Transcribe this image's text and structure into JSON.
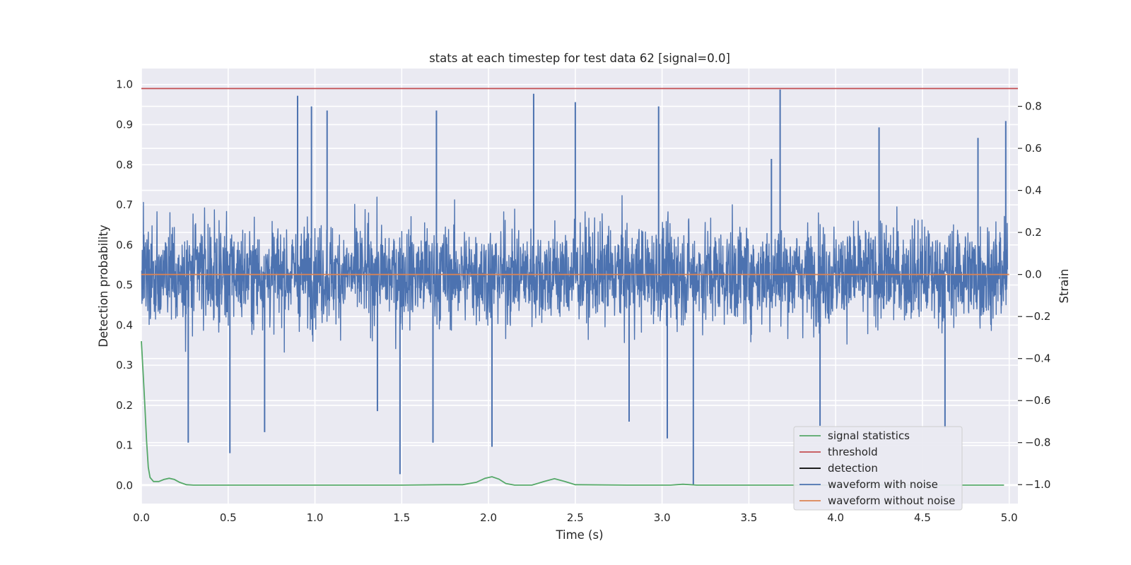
{
  "chart_data": {
    "type": "line",
    "title": "stats at each timestep for test data 62 [signal=0.0]",
    "xlabel": "Time (s)",
    "ylabel_left": "Detection probability",
    "ylabel_right": "Strain",
    "xlim": [
      0.0,
      5.05
    ],
    "ylim_left": [
      -0.045,
      1.04
    ],
    "ylim_right": [
      -1.09,
      0.98
    ],
    "x_ticks": [
      "0.0",
      "0.5",
      "1.0",
      "1.5",
      "2.0",
      "2.5",
      "3.0",
      "3.5",
      "4.0",
      "4.5",
      "5.0"
    ],
    "x_tick_values": [
      0.0,
      0.5,
      1.0,
      1.5,
      2.0,
      2.5,
      3.0,
      3.5,
      4.0,
      4.5,
      5.0
    ],
    "y_left_ticks": [
      "0.0",
      "0.1",
      "0.2",
      "0.3",
      "0.4",
      "0.5",
      "0.6",
      "0.7",
      "0.8",
      "0.9",
      "1.0"
    ],
    "y_left_tick_values": [
      0.0,
      0.1,
      0.2,
      0.3,
      0.4,
      0.5,
      0.6,
      0.7,
      0.8,
      0.9,
      1.0
    ],
    "y_right_ticks": [
      "−1.0",
      "−0.8",
      "−0.6",
      "−0.4",
      "−0.2",
      "0.0",
      "0.2",
      "0.4",
      "0.6",
      "0.8"
    ],
    "y_right_tick_values": [
      -1.0,
      -0.8,
      -0.6,
      -0.4,
      -0.2,
      0.0,
      0.2,
      0.4,
      0.6,
      0.8
    ],
    "grid": true,
    "legend_position": "lower-right",
    "series": [
      {
        "name": "signal statistics",
        "axis": "left",
        "color": "#55a868",
        "x": [
          0.0,
          0.01,
          0.02,
          0.03,
          0.04,
          0.05,
          0.07,
          0.1,
          0.13,
          0.16,
          0.19,
          0.22,
          0.26,
          0.3,
          0.5,
          1.0,
          1.5,
          1.75,
          1.85,
          1.93,
          1.98,
          2.02,
          2.06,
          2.1,
          2.15,
          2.25,
          2.32,
          2.38,
          2.44,
          2.5,
          2.8,
          3.05,
          3.12,
          3.2,
          3.5,
          4.0,
          4.5,
          4.97
        ],
        "y": [
          0.36,
          0.28,
          0.2,
          0.11,
          0.045,
          0.02,
          0.01,
          0.01,
          0.015,
          0.018,
          0.015,
          0.008,
          0.002,
          0.001,
          0.001,
          0.001,
          0.001,
          0.002,
          0.002,
          0.008,
          0.018,
          0.022,
          0.016,
          0.005,
          0.001,
          0.001,
          0.01,
          0.017,
          0.01,
          0.002,
          0.001,
          0.001,
          0.003,
          0.001,
          0.001,
          0.001,
          0.001,
          0.001
        ]
      },
      {
        "name": "threshold",
        "axis": "left",
        "color": "#c44e52",
        "x": [
          0.0,
          5.05
        ],
        "y": [
          0.99,
          0.99
        ]
      },
      {
        "name": "detection",
        "axis": "left",
        "color": "#000000",
        "x": [],
        "y": []
      },
      {
        "name": "waveform with noise",
        "axis": "right",
        "color": "#4c72b0",
        "envelope": [
          -0.3,
          0.3
        ],
        "peaks": [
          {
            "x": 0.27,
            "y": -0.8
          },
          {
            "x": 0.51,
            "y": -0.85
          },
          {
            "x": 0.71,
            "y": -0.75
          },
          {
            "x": 0.9,
            "y": 0.85
          },
          {
            "x": 0.98,
            "y": 0.8
          },
          {
            "x": 1.07,
            "y": 0.78
          },
          {
            "x": 1.36,
            "y": -0.65
          },
          {
            "x": 1.49,
            "y": -0.95
          },
          {
            "x": 1.68,
            "y": -0.8
          },
          {
            "x": 1.7,
            "y": 0.78
          },
          {
            "x": 2.02,
            "y": -0.82
          },
          {
            "x": 2.26,
            "y": 0.86
          },
          {
            "x": 2.5,
            "y": 0.82
          },
          {
            "x": 2.81,
            "y": -0.7
          },
          {
            "x": 2.98,
            "y": 0.8
          },
          {
            "x": 3.03,
            "y": -0.78
          },
          {
            "x": 3.18,
            "y": -1.0
          },
          {
            "x": 3.63,
            "y": 0.55
          },
          {
            "x": 3.68,
            "y": 0.88
          },
          {
            "x": 3.91,
            "y": -0.72
          },
          {
            "x": 4.25,
            "y": 0.7
          },
          {
            "x": 4.63,
            "y": -0.73
          },
          {
            "x": 4.82,
            "y": 0.65
          },
          {
            "x": 4.98,
            "y": 0.73
          }
        ]
      },
      {
        "name": "waveform without noise",
        "axis": "right",
        "color": "#dd8452",
        "x": [
          0.0,
          5.0
        ],
        "y": [
          0.0,
          0.0
        ]
      }
    ]
  }
}
